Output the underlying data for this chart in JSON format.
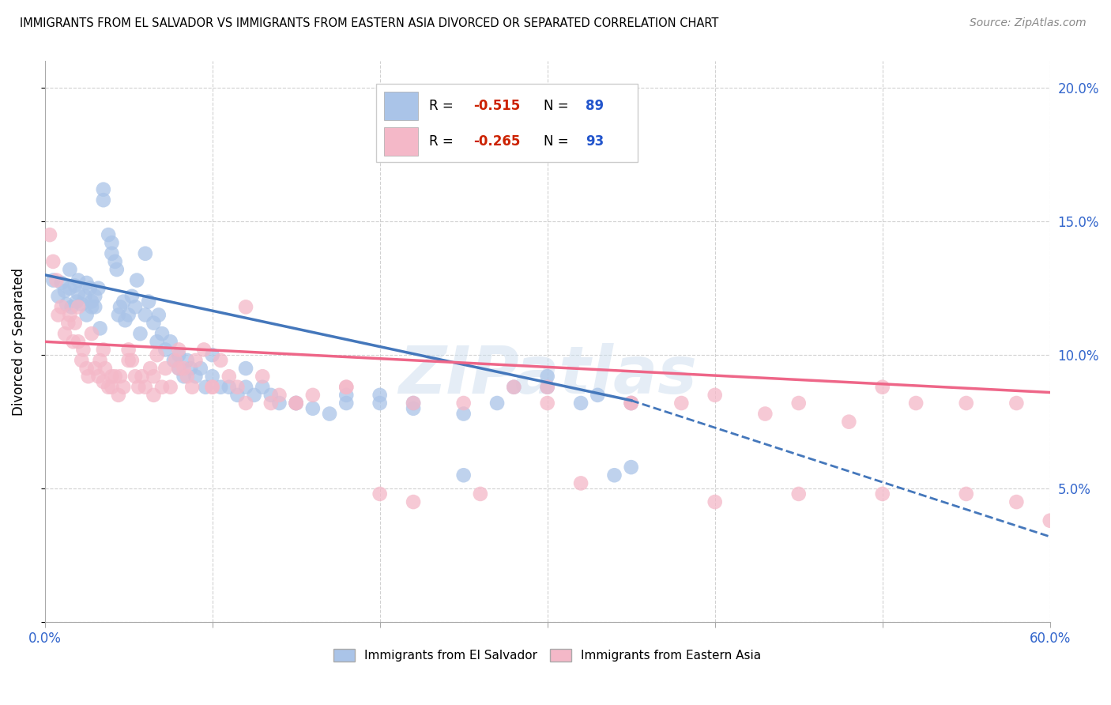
{
  "title": "IMMIGRANTS FROM EL SALVADOR VS IMMIGRANTS FROM EASTERN ASIA DIVORCED OR SEPARATED CORRELATION CHART",
  "source": "Source: ZipAtlas.com",
  "ylabel": "Divorced or Separated",
  "xlim": [
    0.0,
    0.6
  ],
  "ylim": [
    0.0,
    0.21
  ],
  "xticks": [
    0.0,
    0.1,
    0.2,
    0.3,
    0.4,
    0.5,
    0.6
  ],
  "xticklabels": [
    "0.0%",
    "",
    "",
    "",
    "",
    "",
    "60.0%"
  ],
  "yticks": [
    0.0,
    0.05,
    0.1,
    0.15,
    0.2
  ],
  "yticklabels_right": [
    "",
    "5.0%",
    "10.0%",
    "15.0%",
    "20.0%"
  ],
  "blue_color": "#aac4e8",
  "pink_color": "#f4b8c8",
  "blue_line_color": "#4477bb",
  "pink_line_color": "#ee6688",
  "blue_scatter_x": [
    0.005,
    0.008,
    0.01,
    0.012,
    0.013,
    0.015,
    0.015,
    0.016,
    0.018,
    0.019,
    0.02,
    0.02,
    0.022,
    0.024,
    0.025,
    0.025,
    0.027,
    0.028,
    0.028,
    0.03,
    0.03,
    0.032,
    0.033,
    0.035,
    0.035,
    0.038,
    0.04,
    0.04,
    0.042,
    0.043,
    0.044,
    0.045,
    0.047,
    0.048,
    0.05,
    0.052,
    0.054,
    0.055,
    0.057,
    0.06,
    0.062,
    0.065,
    0.067,
    0.068,
    0.07,
    0.072,
    0.075,
    0.077,
    0.08,
    0.083,
    0.085,
    0.087,
    0.09,
    0.093,
    0.096,
    0.1,
    0.105,
    0.11,
    0.115,
    0.12,
    0.125,
    0.13,
    0.135,
    0.14,
    0.15,
    0.16,
    0.17,
    0.18,
    0.2,
    0.22,
    0.25,
    0.28,
    0.3,
    0.33,
    0.35,
    0.06,
    0.08,
    0.1,
    0.12,
    0.15,
    0.18,
    0.2,
    0.22,
    0.25,
    0.27,
    0.3,
    0.32,
    0.34,
    0.35
  ],
  "blue_scatter_y": [
    0.128,
    0.122,
    0.127,
    0.124,
    0.119,
    0.125,
    0.132,
    0.118,
    0.126,
    0.12,
    0.123,
    0.128,
    0.119,
    0.122,
    0.127,
    0.115,
    0.125,
    0.12,
    0.118,
    0.122,
    0.118,
    0.125,
    0.11,
    0.162,
    0.158,
    0.145,
    0.142,
    0.138,
    0.135,
    0.132,
    0.115,
    0.118,
    0.12,
    0.113,
    0.115,
    0.122,
    0.118,
    0.128,
    0.108,
    0.138,
    0.12,
    0.112,
    0.105,
    0.115,
    0.108,
    0.102,
    0.105,
    0.098,
    0.1,
    0.092,
    0.098,
    0.095,
    0.092,
    0.095,
    0.088,
    0.092,
    0.088,
    0.088,
    0.085,
    0.088,
    0.085,
    0.088,
    0.085,
    0.082,
    0.082,
    0.08,
    0.078,
    0.082,
    0.085,
    0.082,
    0.055,
    0.088,
    0.092,
    0.085,
    0.082,
    0.115,
    0.095,
    0.1,
    0.095,
    0.082,
    0.085,
    0.082,
    0.08,
    0.078,
    0.082,
    0.088,
    0.082,
    0.055,
    0.058
  ],
  "pink_scatter_x": [
    0.003,
    0.005,
    0.007,
    0.008,
    0.01,
    0.012,
    0.014,
    0.015,
    0.017,
    0.018,
    0.02,
    0.02,
    0.022,
    0.023,
    0.025,
    0.026,
    0.028,
    0.03,
    0.032,
    0.033,
    0.035,
    0.036,
    0.038,
    0.04,
    0.04,
    0.042,
    0.044,
    0.045,
    0.047,
    0.05,
    0.052,
    0.054,
    0.056,
    0.058,
    0.06,
    0.063,
    0.065,
    0.067,
    0.07,
    0.072,
    0.075,
    0.078,
    0.08,
    0.083,
    0.085,
    0.088,
    0.09,
    0.095,
    0.1,
    0.105,
    0.11,
    0.115,
    0.12,
    0.13,
    0.135,
    0.14,
    0.15,
    0.16,
    0.18,
    0.2,
    0.22,
    0.25,
    0.28,
    0.3,
    0.32,
    0.35,
    0.38,
    0.4,
    0.43,
    0.45,
    0.48,
    0.5,
    0.52,
    0.55,
    0.58,
    0.035,
    0.05,
    0.065,
    0.08,
    0.1,
    0.12,
    0.15,
    0.18,
    0.22,
    0.26,
    0.3,
    0.35,
    0.4,
    0.45,
    0.5,
    0.55,
    0.58,
    0.6
  ],
  "pink_scatter_y": [
    0.145,
    0.135,
    0.128,
    0.115,
    0.118,
    0.108,
    0.112,
    0.115,
    0.105,
    0.112,
    0.118,
    0.105,
    0.098,
    0.102,
    0.095,
    0.092,
    0.108,
    0.095,
    0.092,
    0.098,
    0.09,
    0.095,
    0.088,
    0.092,
    0.088,
    0.092,
    0.085,
    0.092,
    0.088,
    0.102,
    0.098,
    0.092,
    0.088,
    0.092,
    0.088,
    0.095,
    0.085,
    0.1,
    0.088,
    0.095,
    0.088,
    0.098,
    0.102,
    0.095,
    0.092,
    0.088,
    0.098,
    0.102,
    0.088,
    0.098,
    0.092,
    0.088,
    0.118,
    0.092,
    0.082,
    0.085,
    0.082,
    0.085,
    0.088,
    0.048,
    0.045,
    0.082,
    0.088,
    0.082,
    0.052,
    0.082,
    0.082,
    0.085,
    0.078,
    0.082,
    0.075,
    0.088,
    0.082,
    0.048,
    0.082,
    0.102,
    0.098,
    0.092,
    0.095,
    0.088,
    0.082,
    0.082,
    0.088,
    0.082,
    0.048,
    0.088,
    0.082,
    0.045,
    0.048,
    0.048,
    0.082,
    0.045,
    0.038
  ],
  "blue_trend_x0": 0.0,
  "blue_trend_y0": 0.13,
  "blue_trend_x1": 0.35,
  "blue_trend_y1": 0.083,
  "blue_trend_x2": 0.6,
  "blue_trend_y2": 0.032,
  "pink_trend_x0": 0.0,
  "pink_trend_y0": 0.105,
  "pink_trend_x1": 0.6,
  "pink_trend_y1": 0.086,
  "watermark": "ZIPatlas"
}
